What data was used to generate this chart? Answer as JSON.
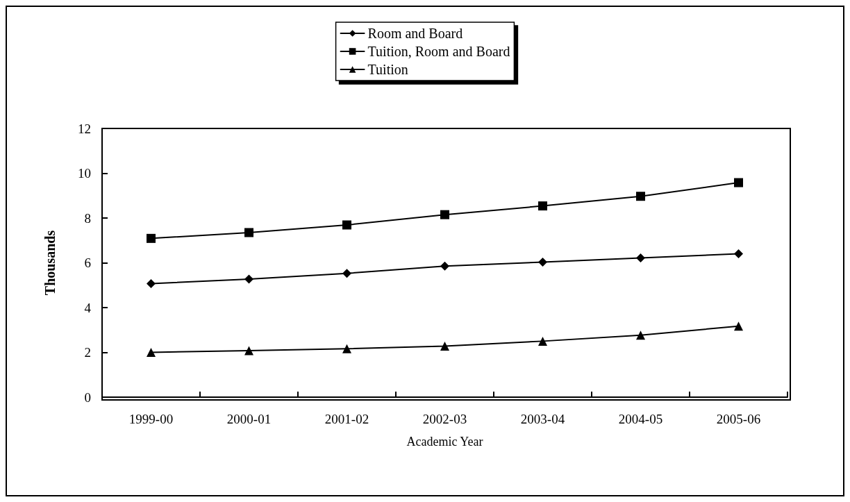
{
  "chart_data": {
    "type": "line",
    "xlabel": "Academic Year",
    "ylabel": "Thousands",
    "categories": [
      "1999-00",
      "2000-01",
      "2001-02",
      "2002-03",
      "2003-04",
      "2004-05",
      "2005-06"
    ],
    "series": [
      {
        "name": "Room and Board",
        "color": "#000000",
        "marker": "diamond",
        "values": [
          5.07,
          5.27,
          5.53,
          5.85,
          6.03,
          6.22,
          6.4
        ]
      },
      {
        "name": "Tuition, Room and Board",
        "color": "#000000",
        "marker": "square",
        "values": [
          7.09,
          7.35,
          7.69,
          8.15,
          8.54,
          8.97,
          9.58
        ]
      },
      {
        "name": "Tuition",
        "color": "#000000",
        "marker": "triangle",
        "values": [
          2.0,
          2.08,
          2.16,
          2.28,
          2.5,
          2.77,
          3.17
        ]
      }
    ],
    "ylim": [
      0,
      12
    ],
    "yticks": [
      0,
      2,
      4,
      6,
      8,
      10,
      12
    ],
    "grid": false,
    "legend": "top",
    "line_style": "solid"
  }
}
